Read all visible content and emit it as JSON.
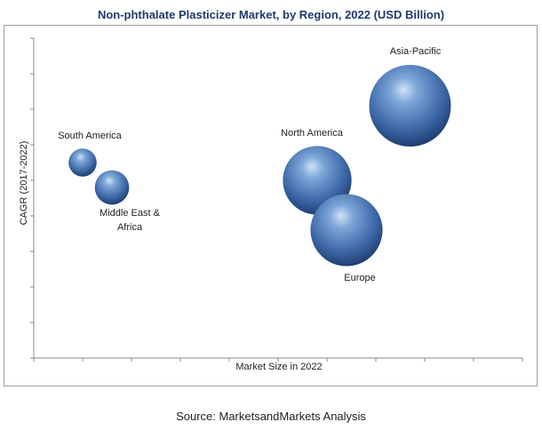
{
  "title": "Non-phthalate Plasticizer Market, by Region, 2022 (USD Billion)",
  "source": "Source: MarketsandMarkets Analysis",
  "chart_data": {
    "type": "bubble",
    "title": "Non-phthalate Plasticizer Market, by Region, 2022 (USD Billion)",
    "xlabel": "Market Size in 2022",
    "ylabel": "CAGR (2017-2022)",
    "x_tick_labels": false,
    "y_tick_labels": false,
    "grid": false,
    "legend": "none",
    "bubble_color": "#4a78b8",
    "series": [
      {
        "name": "South America",
        "x": 1.0,
        "y": 5.5,
        "size": 1.0
      },
      {
        "name": "Middle East & Africa",
        "x": 1.6,
        "y": 4.8,
        "size": 1.5
      },
      {
        "name": "North America",
        "x": 5.8,
        "y": 5.0,
        "size": 6.0
      },
      {
        "name": "Europe",
        "x": 6.4,
        "y": 3.6,
        "size": 6.6
      },
      {
        "name": "Asia-Pacific",
        "x": 7.7,
        "y": 7.1,
        "size": 8.5
      }
    ],
    "xlim": [
      0,
      10
    ],
    "ylim": [
      0,
      9
    ]
  }
}
